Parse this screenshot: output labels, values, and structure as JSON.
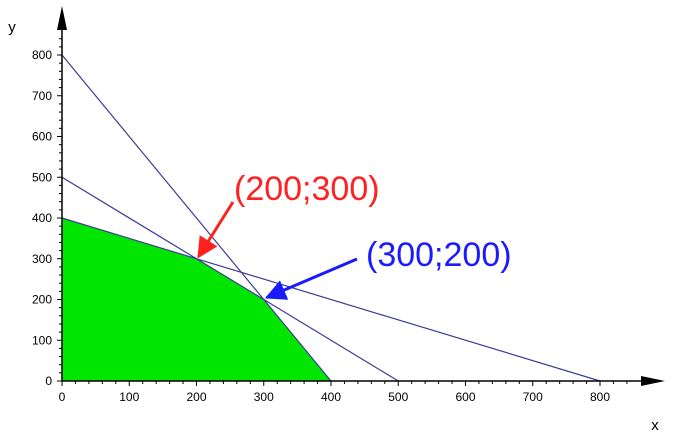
{
  "chart_data": {
    "type": "area",
    "title": "",
    "xlabel": "x",
    "ylabel": "y",
    "xlim": [
      0,
      860
    ],
    "ylim": [
      0,
      860
    ],
    "xticks": [
      0,
      100,
      200,
      300,
      400,
      500,
      600,
      700,
      800
    ],
    "yticks": [
      0,
      100,
      200,
      300,
      400,
      500,
      600,
      700,
      800
    ],
    "grid": false,
    "legend": "none",
    "colors": {
      "feasible_fill": "#00e600",
      "constraint_line": "#3c3c96",
      "axis": "#000000",
      "annotation_1": "#ff2020",
      "annotation_2": "#1a1aff"
    },
    "lines": [
      {
        "x": [
          0,
          400
        ],
        "y": [
          800,
          0
        ]
      },
      {
        "x": [
          0,
          500
        ],
        "y": [
          500,
          0
        ]
      },
      {
        "x": [
          0,
          800
        ],
        "y": [
          400,
          0
        ]
      }
    ],
    "feasible_region": {
      "x": [
        0,
        0,
        200,
        300,
        400
      ],
      "y": [
        0,
        400,
        300,
        200,
        0
      ]
    },
    "annotations": [
      {
        "text": "(200;300)",
        "point": [
          200,
          300
        ],
        "color": "#ff2020"
      },
      {
        "text": "(300;200)",
        "point": [
          300,
          200
        ],
        "color": "#1a1aff"
      }
    ]
  }
}
